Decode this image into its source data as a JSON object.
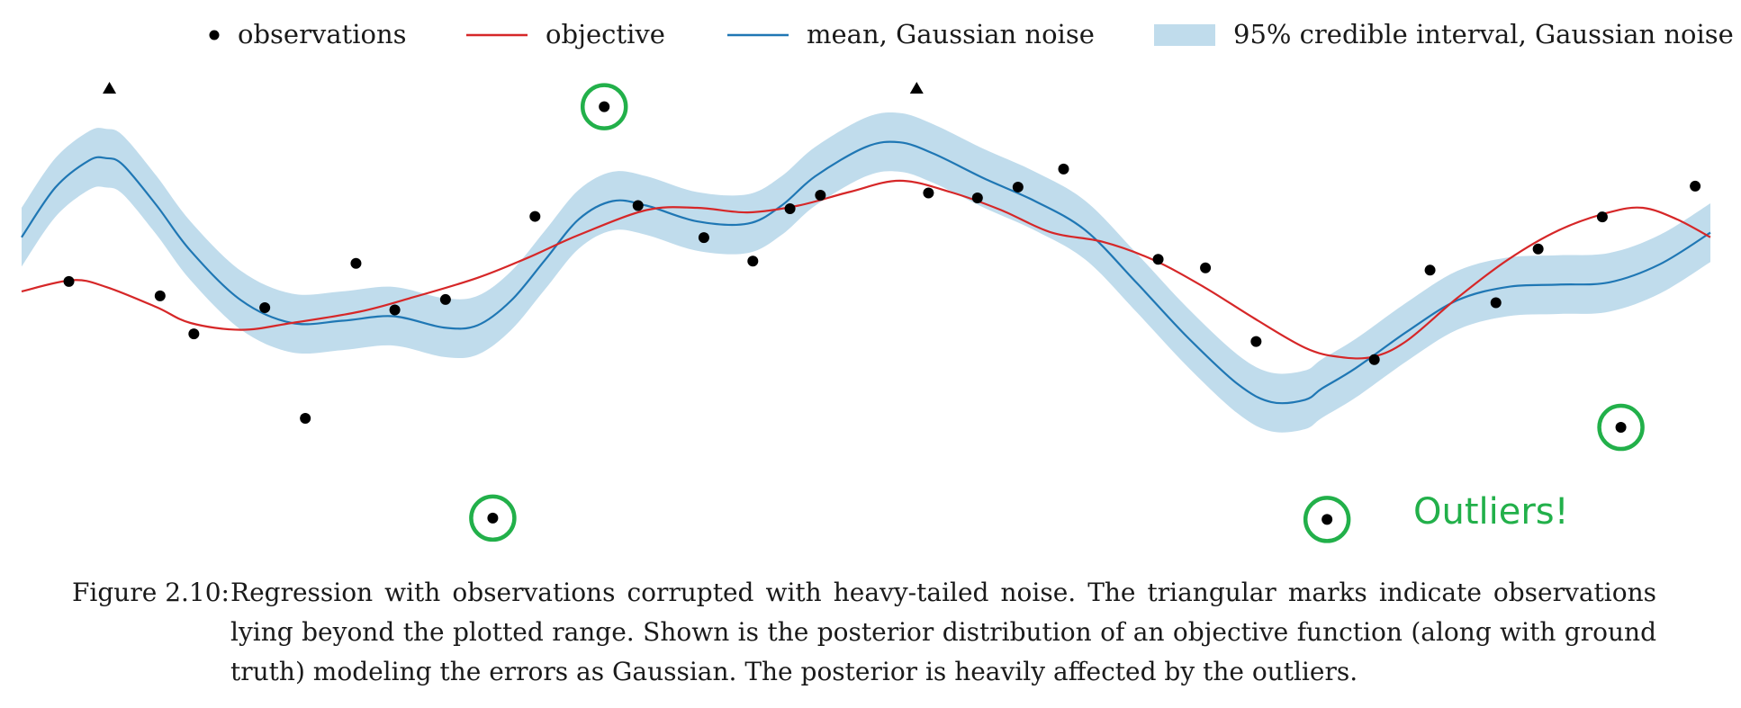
{
  "caption": {
    "label": "Figure 2.10:",
    "text": "Regression with observations corrupted with heavy-tailed noise. The triangular marks indicate observations lying beyond the plotted range. Shown is the posterior distribution of an objective function (along with ground truth) modeling the errors as Gaussian. The posterior is heavily affected by the outliers."
  },
  "annotation": "Outliers!",
  "colors": {
    "observations": "#000000",
    "objective": "#d62728",
    "mean": "#1f77b4",
    "interval": "#c0dcec",
    "outlier_circle": "#22b04a"
  },
  "chart_data": {
    "type": "line",
    "xlim": [
      0,
      100
    ],
    "ylim": [
      0,
      100
    ],
    "grid": false,
    "axes_visible": false,
    "legend": {
      "position": "top",
      "entries": [
        {
          "label": "observations",
          "kind": "marker"
        },
        {
          "label": "objective",
          "kind": "line"
        },
        {
          "label": "mean, Gaussian noise",
          "kind": "line"
        },
        {
          "label": "95% credible interval, Gaussian noise",
          "kind": "band"
        }
      ]
    },
    "observations": [
      {
        "x": 2.8,
        "y": 57.2
      },
      {
        "x": 8.2,
        "y": 54.0
      },
      {
        "x": 10.2,
        "y": 45.6
      },
      {
        "x": 14.4,
        "y": 51.4
      },
      {
        "x": 16.8,
        "y": 26.9
      },
      {
        "x": 19.8,
        "y": 61.2
      },
      {
        "x": 22.1,
        "y": 50.9
      },
      {
        "x": 25.1,
        "y": 53.2
      },
      {
        "x": 27.9,
        "y": 4.8,
        "outlier": true
      },
      {
        "x": 30.4,
        "y": 71.6
      },
      {
        "x": 34.5,
        "y": 95.9,
        "outlier": true
      },
      {
        "x": 36.5,
        "y": 74.0
      },
      {
        "x": 40.4,
        "y": 66.9
      },
      {
        "x": 43.3,
        "y": 61.7
      },
      {
        "x": 45.5,
        "y": 73.3
      },
      {
        "x": 47.3,
        "y": 76.3
      },
      {
        "x": 53.7,
        "y": 76.8
      },
      {
        "x": 56.6,
        "y": 75.7
      },
      {
        "x": 59.0,
        "y": 78.1
      },
      {
        "x": 61.7,
        "y": 82.1
      },
      {
        "x": 67.3,
        "y": 62.1
      },
      {
        "x": 70.1,
        "y": 60.2
      },
      {
        "x": 73.1,
        "y": 43.9
      },
      {
        "x": 77.3,
        "y": 4.5,
        "outlier": true
      },
      {
        "x": 80.1,
        "y": 39.9
      },
      {
        "x": 83.4,
        "y": 59.7
      },
      {
        "x": 87.3,
        "y": 52.5
      },
      {
        "x": 89.8,
        "y": 64.4
      },
      {
        "x": 93.6,
        "y": 71.5
      },
      {
        "x": 94.7,
        "y": 24.9,
        "outlier": true
      },
      {
        "x": 99.1,
        "y": 78.3
      }
    ],
    "offscale_markers": [
      {
        "x": 5.2,
        "direction": "above"
      },
      {
        "x": 53.0,
        "direction": "above"
      }
    ],
    "objective": {
      "x": [
        0,
        3,
        5,
        8,
        10,
        13,
        16,
        20,
        23,
        27,
        30,
        33,
        37,
        40,
        43,
        46,
        49,
        52,
        55,
        58,
        61,
        64,
        67,
        70,
        73,
        76,
        78,
        80,
        82,
        85,
        88,
        91,
        94,
        96,
        98,
        100
      ],
      "y": [
        55,
        57.5,
        56,
        51.5,
        48,
        46.5,
        48,
        50.5,
        53.5,
        58,
        62.5,
        67.5,
        73,
        73.5,
        72.5,
        74,
        77,
        79.5,
        77,
        73,
        68,
        66,
        62,
        56,
        49,
        42.5,
        40.5,
        40.5,
        44,
        53.5,
        62,
        68.5,
        72.5,
        73.5,
        71,
        67
      ]
    },
    "mean": {
      "x": [
        0,
        2,
        4,
        5,
        6,
        8,
        10,
        13,
        16,
        19,
        22,
        25,
        27,
        29,
        31,
        33,
        35,
        37,
        40,
        43,
        45,
        47,
        50,
        52,
        54,
        57,
        60,
        63,
        66,
        69,
        72,
        74,
        76,
        77,
        79,
        82,
        85,
        88,
        91,
        94,
        97,
        100
      ],
      "y": [
        67,
        78,
        84,
        84.5,
        83,
        74,
        64,
        53,
        48,
        48.5,
        49.5,
        47,
        47.5,
        53,
        62,
        71,
        75,
        74,
        70.5,
        70,
        74,
        80.5,
        87,
        88,
        85.5,
        80,
        75,
        68.5,
        57,
        45,
        34.5,
        30.5,
        31,
        33.5,
        38,
        46,
        53,
        56,
        56.5,
        57,
        61,
        68
      ]
    },
    "credible_interval_halfwidth": 6.5
  }
}
